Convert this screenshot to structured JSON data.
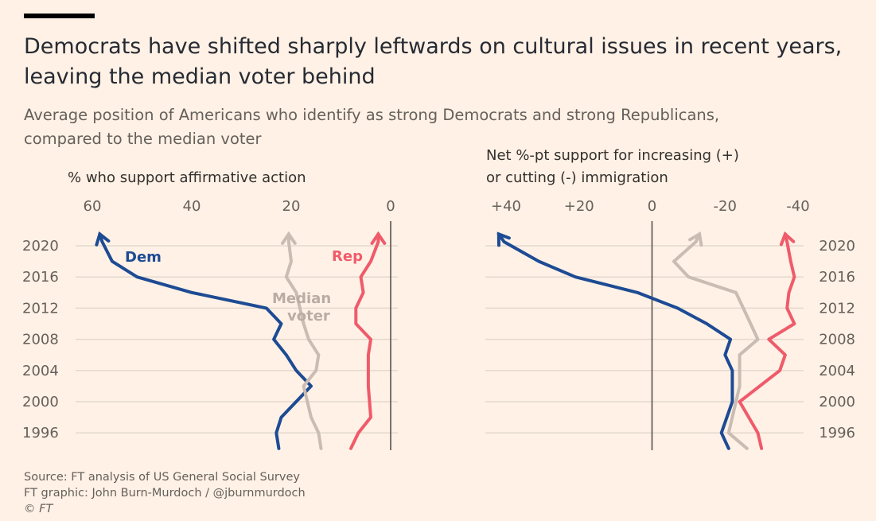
{
  "header": {
    "title_line1": "Democrats have shifted sharply leftwards on cultural issues in recent years,",
    "title_line2": "leaving the median voter behind",
    "subtitle_line1": "Average position of Americans who identify as strong Democrats and strong Republicans,",
    "subtitle_line2": "compared to the median voter"
  },
  "footer": {
    "source": "Source: FT analysis of US General Social Survey",
    "credit": "FT graphic: John Burn-Murdoch / @jburnmurdoch",
    "copyright": "© FT"
  },
  "colors": {
    "background": "#fff1e5",
    "dem": "#1d4b94",
    "rep": "#ef5b6a",
    "median": "#c9bcb3",
    "grid": "#e3d9cf",
    "zero": "#4d4845"
  },
  "chart_data": [
    {
      "type": "line",
      "title": "% who support affirmative action",
      "xlabel": "% who support affirmative action",
      "ylabel": "",
      "x_ticks": [
        "60",
        "40",
        "20",
        "0"
      ],
      "x_tick_values": [
        60,
        40,
        20,
        0
      ],
      "xlim": [
        60,
        0
      ],
      "x_reversed": true,
      "y_ticks": [
        "2020",
        "2016",
        "2012",
        "2008",
        "2004",
        "2000",
        "1996"
      ],
      "y_tick_values": [
        2020,
        2016,
        2012,
        2008,
        2004,
        2000,
        1996
      ],
      "ylim": [
        1994,
        2022.5
      ],
      "y_axis_side": "left",
      "series": [
        {
          "name": "Dem",
          "color": "#1d4b94",
          "points": [
            [
              22.5,
              1994
            ],
            [
              23,
              1996
            ],
            [
              22,
              1998
            ],
            [
              16,
              2002
            ],
            [
              19,
              2004
            ],
            [
              21,
              2006
            ],
            [
              23.5,
              2008
            ],
            [
              22,
              2010
            ],
            [
              25,
              2012
            ],
            [
              40,
              2014
            ],
            [
              51,
              2016
            ],
            [
              56,
              2018
            ],
            [
              58,
              2020.5
            ],
            [
              58.5,
              2021.5
            ]
          ]
        },
        {
          "name": "Median voter",
          "color": "#c9bcb3",
          "points": [
            [
              14,
              1994
            ],
            [
              14.5,
              1996
            ],
            [
              16,
              1998
            ],
            [
              17.5,
              2002
            ],
            [
              15,
              2004
            ],
            [
              14.5,
              2006
            ],
            [
              16.5,
              2008
            ],
            [
              17.5,
              2010
            ],
            [
              19,
              2014
            ],
            [
              21,
              2016
            ],
            [
              20,
              2018
            ],
            [
              20.5,
              2020.5
            ],
            [
              20.5,
              2021.5
            ]
          ]
        },
        {
          "name": "Rep",
          "color": "#ef5b6a",
          "points": [
            [
              8,
              1994
            ],
            [
              6.5,
              1996
            ],
            [
              4,
              1998
            ],
            [
              4.5,
              2002
            ],
            [
              4.5,
              2004
            ],
            [
              4.5,
              2006
            ],
            [
              4,
              2008
            ],
            [
              7,
              2010
            ],
            [
              7,
              2012
            ],
            [
              5.5,
              2014
            ],
            [
              6,
              2016
            ],
            [
              4,
              2018
            ],
            [
              2.5,
              2020.5
            ],
            [
              2.5,
              2021.5
            ]
          ]
        }
      ],
      "labels": {
        "dem": "Dem",
        "median_line1": "Median",
        "median_line2": "voter",
        "rep": "Rep"
      }
    },
    {
      "type": "line",
      "title": "Net %-pt support for increasing (+) or cutting (-) immigration",
      "xlabel_line1": "Net %-pt support for increasing (+)",
      "xlabel_line2": "or cutting (-) immigration",
      "ylabel": "",
      "x_ticks": [
        "+40",
        "+20",
        "0",
        "-20",
        "-40"
      ],
      "x_tick_values": [
        40,
        20,
        0,
        -20,
        -40
      ],
      "xlim": [
        44,
        -44
      ],
      "x_reversed": true,
      "y_ticks": [
        "2020",
        "2016",
        "2012",
        "2008",
        "2004",
        "2000",
        "1996"
      ],
      "y_tick_values": [
        2020,
        2016,
        2012,
        2008,
        2004,
        2000,
        1996
      ],
      "ylim": [
        1994,
        2022.5
      ],
      "y_axis_side": "right",
      "series": [
        {
          "name": "Dem",
          "color": "#1d4b94",
          "points": [
            [
              -21,
              1994
            ],
            [
              -19,
              1996
            ],
            [
              -22,
              2000
            ],
            [
              -22,
              2004
            ],
            [
              -20,
              2006
            ],
            [
              -21.5,
              2008
            ],
            [
              -15,
              2010
            ],
            [
              -7,
              2012
            ],
            [
              4,
              2014
            ],
            [
              21,
              2016
            ],
            [
              31,
              2018
            ],
            [
              40.5,
              2020.5
            ],
            [
              42,
              2021.5
            ]
          ]
        },
        {
          "name": "Median voter",
          "color": "#c9bcb3",
          "points": [
            [
              -26,
              1994
            ],
            [
              -21,
              1996
            ],
            [
              -24,
              2002
            ],
            [
              -24,
              2006
            ],
            [
              -29,
              2008
            ],
            [
              -27,
              2010
            ],
            [
              -25,
              2012
            ],
            [
              -23,
              2014
            ],
            [
              -10,
              2016
            ],
            [
              -6,
              2018
            ],
            [
              -12,
              2020.5
            ],
            [
              -13,
              2021.5
            ]
          ]
        },
        {
          "name": "Rep",
          "color": "#ef5b6a",
          "points": [
            [
              -30,
              1994
            ],
            [
              -29,
              1996
            ],
            [
              -24,
              2000
            ],
            [
              -35,
              2004
            ],
            [
              -36.5,
              2006
            ],
            [
              -32,
              2008
            ],
            [
              -39,
              2010
            ],
            [
              -37,
              2012
            ],
            [
              -37.5,
              2014
            ],
            [
              -39,
              2016
            ],
            [
              -38,
              2018
            ],
            [
              -37,
              2020.5
            ],
            [
              -36.5,
              2021.5
            ]
          ]
        }
      ]
    }
  ]
}
